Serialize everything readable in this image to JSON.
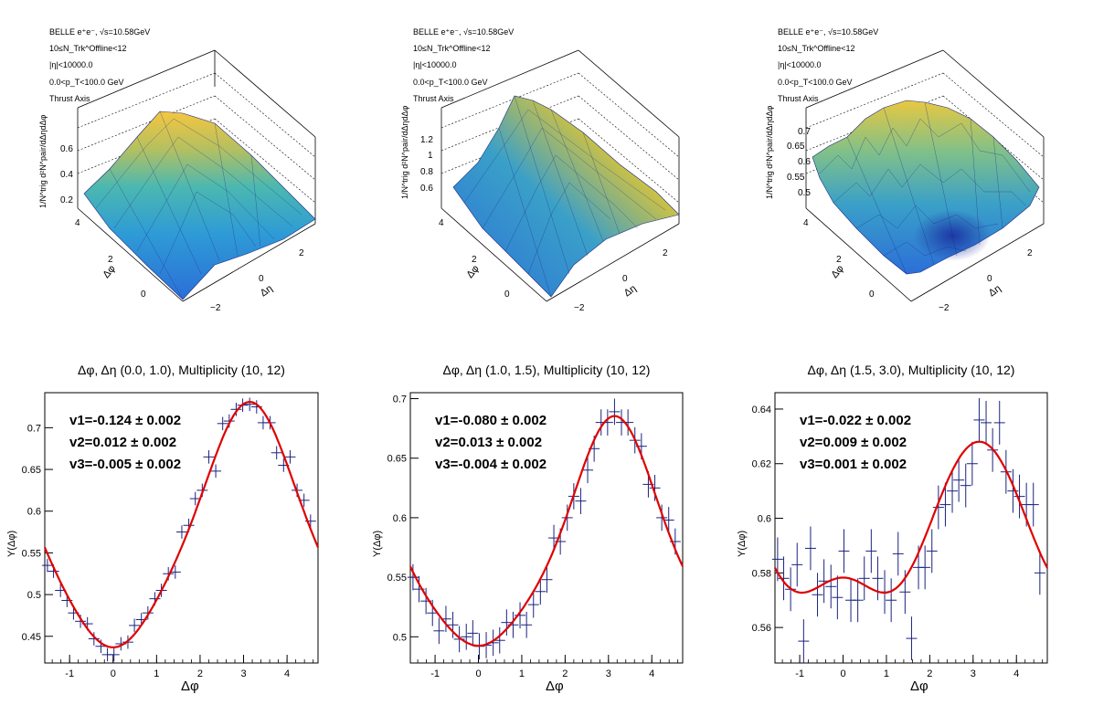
{
  "surface_panels": [
    {
      "info": [
        "BELLE e⁺e⁻, √s=10.58GeV",
        "10≤N_Trk^Offline<12",
        "|η|<10000.0",
        "0.0<p_T<100.0 GeV",
        "Thrust Axis"
      ],
      "zticks": [
        "0.2",
        "0.4",
        "0.6"
      ],
      "zlabel": "1/N^trig d²N^pair/dΔηdΔφ",
      "xlabel": "Δφ",
      "ylabel": "Δη",
      "xticks": [
        "0",
        "2",
        "4"
      ],
      "yticks": [
        "−2",
        "0",
        "2"
      ],
      "style": "smooth-peak"
    },
    {
      "info": [
        "BELLE e⁺e⁻, √s=10.58GeV",
        "10≤N_Trk^Offline<12",
        "|η|<10000.0",
        "0.0<p_T<100.0 GeV",
        "Thrust Axis"
      ],
      "zticks": [
        "0.6",
        "0.8",
        "1",
        "1.2"
      ],
      "zlabel": "1/N^trig d²N^pair/dΔηdΔφ",
      "xlabel": "Δφ",
      "ylabel": "Δη",
      "xticks": [
        "0",
        "2",
        "4"
      ],
      "yticks": [
        "−2",
        "0",
        "2"
      ],
      "style": "ridge"
    },
    {
      "info": [
        "BELLE e⁺e⁻, √s=10.58GeV",
        "10≤N_Trk^Offline<12",
        "|η|<10000.0",
        "0.0<p_T<100.0 GeV",
        "Thrust Axis"
      ],
      "zticks": [
        "0.5",
        "0.55",
        "0.6",
        "0.65",
        "0.7"
      ],
      "zlabel": "1/N^trig d²N^pair/dΔηdΔφ",
      "xlabel": "Δφ",
      "ylabel": "Δη",
      "xticks": [
        "0",
        "2",
        "4"
      ],
      "yticks": [
        "−2",
        "0",
        "2"
      ],
      "style": "noisy-dip"
    }
  ],
  "chart_data": [
    {
      "type": "scatter",
      "title": "Δφ, Δη (0.0, 1.0), Multiplicity (10, 12)",
      "xlabel": "Δφ",
      "ylabel": "Y(Δφ)",
      "xlim": [
        -1.571,
        4.712
      ],
      "ylim": [
        0.418,
        0.742
      ],
      "xticks": [
        -1,
        0,
        1,
        2,
        3,
        4
      ],
      "yticks": [
        0.45,
        0.5,
        0.55,
        0.6,
        0.65,
        0.7
      ],
      "fit": {
        "c": 0.5702,
        "v1": -0.124,
        "v2": 0.012,
        "v3": -0.005
      },
      "annotations": [
        "v1=-0.124 ± 0.002",
        "v2=0.012 ± 0.002",
        "v3=-0.005 ± 0.002"
      ],
      "x": [
        -1.51,
        -1.37,
        -1.21,
        -1.06,
        -0.91,
        -0.75,
        -0.59,
        -0.44,
        -0.28,
        -0.13,
        0.02,
        0.18,
        0.34,
        0.49,
        0.65,
        0.8,
        0.96,
        1.11,
        1.27,
        1.43,
        1.58,
        1.74,
        1.89,
        2.05,
        2.2,
        2.36,
        2.52,
        2.67,
        2.83,
        2.98,
        3.14,
        3.3,
        3.45,
        3.61,
        3.76,
        3.92,
        4.07,
        4.23,
        4.39,
        4.54
      ],
      "y": [
        0.535,
        0.528,
        0.505,
        0.493,
        0.478,
        0.468,
        0.465,
        0.447,
        0.438,
        0.428,
        0.428,
        0.441,
        0.443,
        0.463,
        0.47,
        0.478,
        0.495,
        0.505,
        0.525,
        0.527,
        0.575,
        0.583,
        0.615,
        0.625,
        0.665,
        0.648,
        0.705,
        0.708,
        0.722,
        0.727,
        0.728,
        0.725,
        0.706,
        0.706,
        0.67,
        0.655,
        0.665,
        0.625,
        0.613,
        0.588
      ],
      "yerr": 0.008
    },
    {
      "type": "scatter",
      "title": "Δφ, Δη (1.0, 1.5), Multiplicity (10, 12)",
      "xlabel": "Δφ",
      "ylabel": "Y(Δφ)",
      "xlim": [
        -1.571,
        4.712
      ],
      "ylim": [
        0.478,
        0.705
      ],
      "xticks": [
        -1,
        0,
        1,
        2,
        3,
        4
      ],
      "yticks": [
        0.5,
        0.55,
        0.6,
        0.65,
        0.7
      ],
      "fit": {
        "c": 0.574,
        "v1": -0.08,
        "v2": 0.013,
        "v3": -0.004
      },
      "annotations": [
        "v1=-0.080 ± 0.002",
        "v2=0.013 ± 0.002",
        "v3=-0.004 ± 0.002"
      ],
      "x": [
        -1.51,
        -1.37,
        -1.21,
        -1.06,
        -0.91,
        -0.75,
        -0.59,
        -0.44,
        -0.28,
        -0.13,
        0.02,
        0.18,
        0.34,
        0.49,
        0.65,
        0.8,
        0.96,
        1.11,
        1.27,
        1.43,
        1.58,
        1.74,
        1.89,
        2.05,
        2.2,
        2.36,
        2.52,
        2.67,
        2.83,
        2.98,
        3.14,
        3.3,
        3.45,
        3.61,
        3.76,
        3.92,
        4.07,
        4.23,
        4.39,
        4.54
      ],
      "y": [
        0.55,
        0.54,
        0.53,
        0.52,
        0.505,
        0.515,
        0.51,
        0.498,
        0.5,
        0.503,
        0.492,
        0.493,
        0.495,
        0.497,
        0.512,
        0.51,
        0.518,
        0.51,
        0.527,
        0.538,
        0.548,
        0.583,
        0.58,
        0.6,
        0.618,
        0.614,
        0.64,
        0.658,
        0.68,
        0.68,
        0.689,
        0.68,
        0.68,
        0.665,
        0.66,
        0.628,
        0.625,
        0.6,
        0.598,
        0.58
      ],
      "yerr": 0.011
    },
    {
      "type": "scatter",
      "title": "Δφ, Δη (1.5, 3.0), Multiplicity (10, 12)",
      "xlabel": "Δφ",
      "ylabel": "Y(Δφ)",
      "xlim": [
        -1.571,
        4.712
      ],
      "ylim": [
        0.547,
        0.646
      ],
      "xticks": [
        -1,
        0,
        1,
        2,
        3,
        4
      ],
      "yticks": [
        0.56,
        0.58,
        0.6,
        0.62,
        0.64
      ],
      "fit": {
        "c": 0.5925,
        "v1": -0.022,
        "v2": 0.009,
        "v3": 0.001
      },
      "annotations": [
        "v1=-0.022 ± 0.002",
        "v2=0.009 ± 0.002",
        "v3=0.001 ± 0.002"
      ],
      "x": [
        -1.51,
        -1.37,
        -1.21,
        -1.06,
        -0.91,
        -0.75,
        -0.59,
        -0.44,
        -0.28,
        -0.13,
        0.02,
        0.18,
        0.34,
        0.49,
        0.65,
        0.8,
        0.96,
        1.11,
        1.27,
        1.43,
        1.58,
        1.74,
        1.89,
        2.05,
        2.2,
        2.36,
        2.52,
        2.67,
        2.83,
        2.98,
        3.14,
        3.3,
        3.45,
        3.61,
        3.76,
        3.92,
        4.07,
        4.23,
        4.39,
        4.54
      ],
      "y": [
        0.585,
        0.578,
        0.574,
        0.583,
        0.555,
        0.589,
        0.572,
        0.577,
        0.575,
        0.571,
        0.588,
        0.57,
        0.57,
        0.578,
        0.588,
        0.578,
        0.573,
        0.57,
        0.587,
        0.573,
        0.556,
        0.582,
        0.582,
        0.588,
        0.604,
        0.605,
        0.61,
        0.614,
        0.612,
        0.62,
        0.636,
        0.635,
        0.625,
        0.635,
        0.617,
        0.61,
        0.608,
        0.605,
        0.605,
        0.58
      ],
      "yerr": 0.008
    }
  ]
}
